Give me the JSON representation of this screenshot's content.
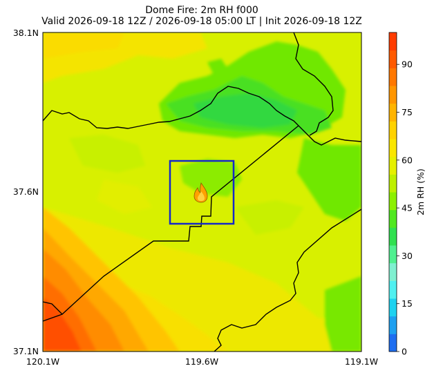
{
  "title": {
    "line1": "Dome Fire: 2m RH f000",
    "line2": "Valid 2026-09-18 12Z / 2026-09-18 05:00 LT | Init 2026-09-18 12Z"
  },
  "map": {
    "lat_labels": [
      "38.1N",
      "37.6N",
      "37.1N"
    ],
    "lon_labels": [
      "120.1W",
      "119.6W",
      "119.1W"
    ],
    "lat_range": [
      37.1,
      38.1
    ],
    "lon_range": [
      -120.1,
      -119.1
    ],
    "fire_marker_icon": "fire-icon",
    "box_color": "#1428c8"
  },
  "colorbar": {
    "label": "2m RH (%)",
    "ticks": [
      "0",
      "15",
      "30",
      "45",
      "60",
      "75",
      "90"
    ],
    "range": [
      0,
      100
    ],
    "colors": [
      "#1e6ef0",
      "#1ea0f0",
      "#1ed2f0",
      "#50f0f0",
      "#80f0d0",
      "#50f090",
      "#30e050",
      "#50e820",
      "#8cf000",
      "#bef000",
      "#e6f000",
      "#fae600",
      "#ffd200",
      "#ffb400",
      "#ff9600",
      "#ff7800",
      "#ff5a00",
      "#ff3c00"
    ]
  }
}
